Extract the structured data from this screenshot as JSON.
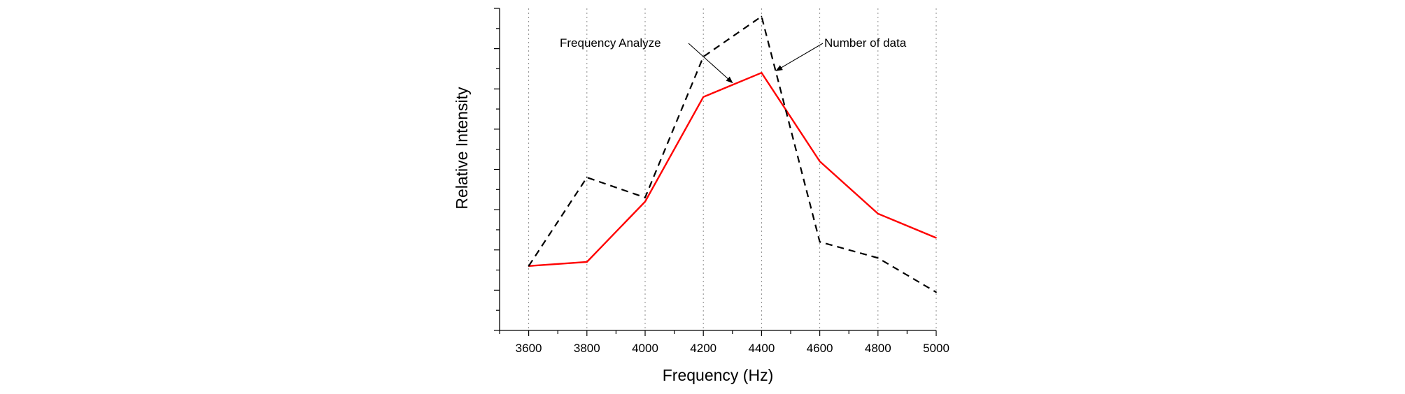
{
  "chart_data": {
    "type": "line",
    "title": "",
    "xlabel": "Frequency (Hz)",
    "ylabel": "Relative Intensity",
    "x": [
      3600,
      3800,
      4000,
      4200,
      4400,
      4600,
      4800,
      5000
    ],
    "xlim": [
      3500,
      5000
    ],
    "ylim": [
      0,
      8
    ],
    "y_tick_labels_shown": false,
    "grid": "vertical dotted at x ticks",
    "series": [
      {
        "name": "Frequency Analyze",
        "color": "#ff0000",
        "style": "solid",
        "values": [
          1.6,
          1.7,
          3.2,
          5.8,
          6.4,
          4.2,
          2.9,
          2.3
        ]
      },
      {
        "name": "Number of data",
        "color": "#000000",
        "style": "dashed",
        "values": [
          1.6,
          3.8,
          3.3,
          6.8,
          7.8,
          2.2,
          1.8,
          0.95
        ]
      }
    ],
    "annotations": [
      {
        "text": "Frequency Analyze",
        "target_series": "Frequency Analyze",
        "target_x": 4300
      },
      {
        "text": "Number of data",
        "target_series": "Number of data",
        "target_x": 4450
      }
    ]
  }
}
